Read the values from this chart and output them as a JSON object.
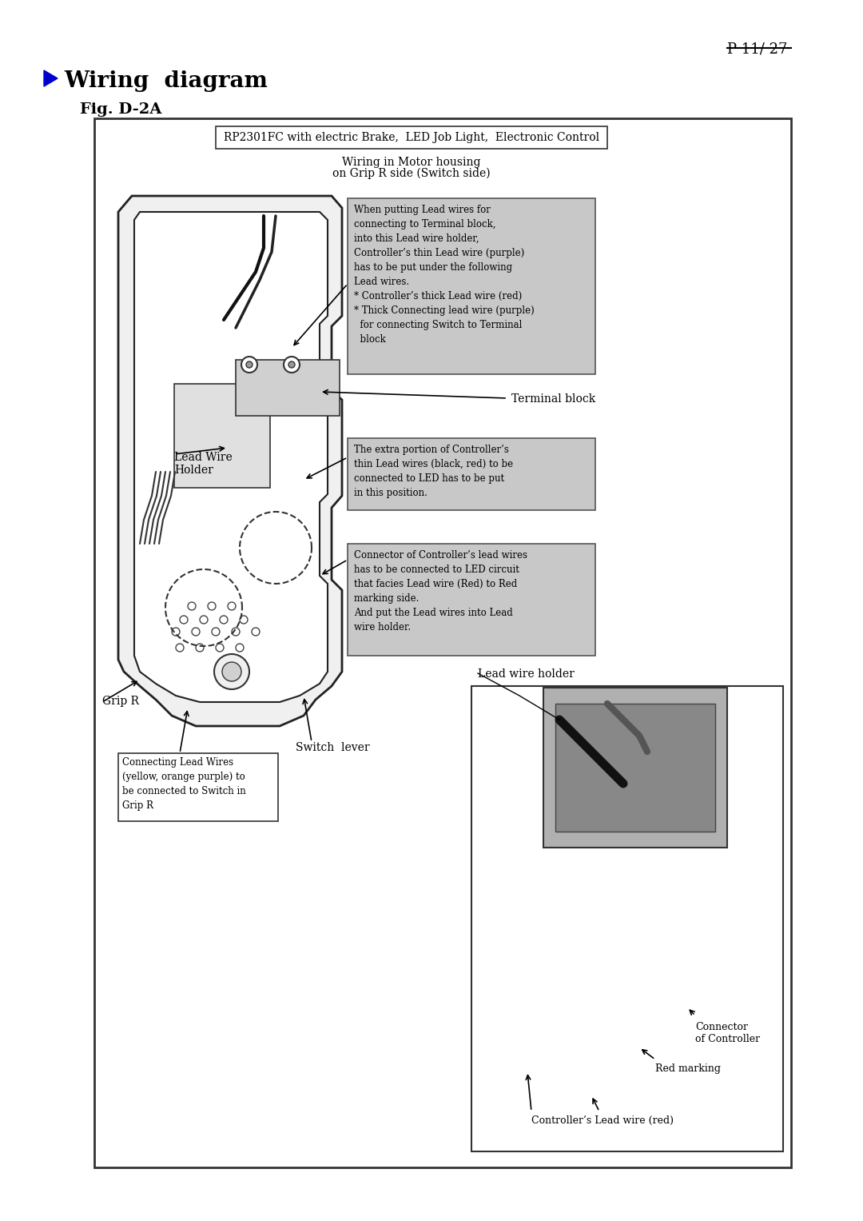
{
  "page_num": "P 11/ 27",
  "title": "Wiring  diagram",
  "fig_label": "Fig. D-2A",
  "box_title": "RP2301FC with electric Brake,  LED Job Light,  Electronic Control",
  "subtitle1": "Wiring in Motor housing",
  "subtitle2": "on Grip R side (Switch side)",
  "note1_title": "",
  "note1": "When putting Lead wires for\nconnecting to Terminal block,\ninto this Lead wire holder,\nController’s thin Lead wire (purple)\nhas to be put under the following\nLead wires.\n* Controller’s thick Lead wire (red)\n* Thick Connecting lead wire (purple)\n  for connecting Switch to Terminal\n  block",
  "note2": "The extra portion of Controller’s\nthin Lead wires (black, red) to be\nconnected to LED has to be put\nin this position.",
  "note3": "Connector of Controller’s lead wires\nhas to be connected to LED circuit\nthat facies Lead wire (Red) to Red\nmarking side.\nAnd put the Lead wires into Lead\nwire holder.",
  "label_terminal": "Terminal block",
  "label_lead_wire": "Lead Wire\nHolder",
  "label_grip_r": "Grip R",
  "label_switch": "Switch  lever",
  "label_connecting": "Connecting Lead Wires\n(yellow, orange purple) to\nbe connected to Switch in\nGrip R",
  "label_lead_wire_holder": "Lead wire holder",
  "label_connector": "Connector\nof Controller",
  "label_red_marking": "Red marking",
  "label_controller_lead": "Controller’s Lead wire (red)",
  "bg_color": "#ffffff",
  "box_bg": "#d0d0d0",
  "note_bg": "#c8c8c8",
  "border_color": "#333333",
  "text_color": "#000000",
  "title_color": "#0000cc",
  "arrow_color": "#000000"
}
